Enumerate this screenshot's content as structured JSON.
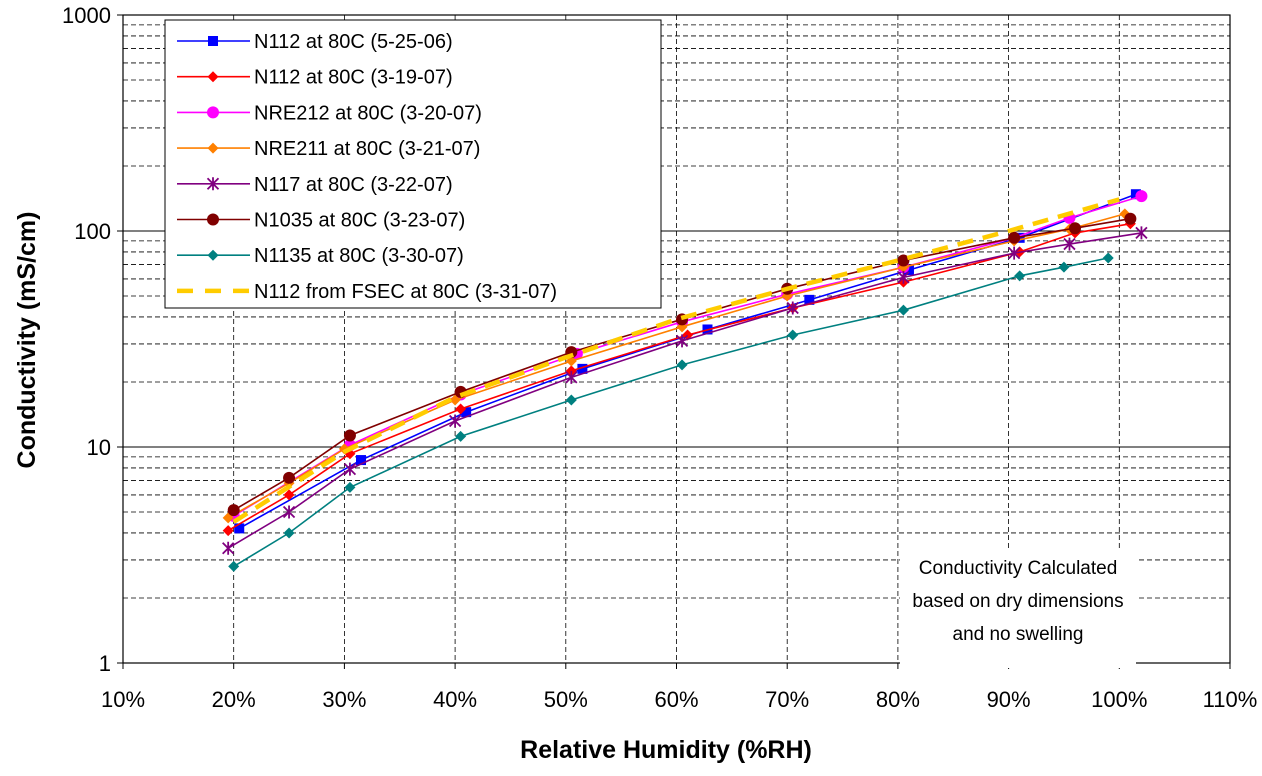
{
  "chart_data": {
    "type": "line",
    "xlabel": "Relative Humidity (%RH)",
    "ylabel": "Conductivity (mS/cm)",
    "x_scale": "linear",
    "y_scale": "log",
    "xlim": [
      10,
      110
    ],
    "ylim": [
      1,
      1000
    ],
    "x_ticks": [
      "10%",
      "20%",
      "30%",
      "40%",
      "50%",
      "60%",
      "70%",
      "80%",
      "90%",
      "100%",
      "110%"
    ],
    "y_ticks": [
      "1",
      "10",
      "100",
      "1000"
    ],
    "grid": "on (dashed)",
    "legend_position": "top-left",
    "annotation": [
      "Conductivity Calculated",
      "based on dry dimensions",
      "and no swelling"
    ],
    "series": [
      {
        "name": "N112 at 80C (5-25-06)",
        "color": "#0000FF",
        "marker": "square",
        "dash": false,
        "x": [
          20.5,
          31.5,
          41,
          51.5,
          62.8,
          72,
          81,
          91,
          101.5
        ],
        "y": [
          4.2,
          8.7,
          14.5,
          23,
          35,
          48,
          66,
          93,
          148
        ]
      },
      {
        "name": "N112 at 80C (3-19-07)",
        "color": "#FF0000",
        "marker": "diamond",
        "dash": false,
        "x": [
          19.5,
          25,
          30.5,
          40.5,
          50.5,
          61,
          70.5,
          80.5,
          91,
          96,
          101
        ],
        "y": [
          4.1,
          6.0,
          9.3,
          15,
          22.5,
          33,
          44,
          58,
          80,
          98,
          108
        ]
      },
      {
        "name": "NRE212 at 80C (3-20-07)",
        "color": "#FF00FF",
        "marker": "circle",
        "dash": false,
        "x": [
          20,
          30.5,
          40.5,
          51,
          60.5,
          70,
          80.5,
          90.5,
          95.5,
          102
        ],
        "y": [
          4.8,
          10.2,
          17.5,
          27,
          38,
          51,
          68,
          93,
          115,
          145
        ]
      },
      {
        "name": "NRE211 at 80C (3-21-07)",
        "color": "#FF8000",
        "marker": "diamond",
        "dash": false,
        "x": [
          19.5,
          25,
          30,
          40,
          50.5,
          60.5,
          70,
          80.5,
          90.5,
          95.5,
          100.5
        ],
        "y": [
          4.7,
          6.8,
          9.8,
          16.5,
          25,
          36,
          50,
          68,
          90,
          102,
          120
        ]
      },
      {
        "name": "N117 at 80C (3-22-07)",
        "color": "#800080",
        "marker": "star",
        "dash": false,
        "x": [
          19.5,
          25,
          30.5,
          40,
          50.5,
          60.5,
          70.5,
          80.5,
          90.5,
          95.5,
          102
        ],
        "y": [
          3.4,
          5.0,
          7.9,
          13.2,
          21,
          31,
          44,
          61,
          79,
          87,
          98
        ]
      },
      {
        "name": "N1035 at 80C (3-23-07)",
        "color": "#800000",
        "marker": "circle",
        "dash": false,
        "x": [
          20,
          25,
          30.5,
          40.5,
          50.5,
          60.5,
          70,
          80.5,
          90.5,
          96,
          101
        ],
        "y": [
          5.1,
          7.2,
          11.3,
          18,
          27.5,
          39,
          54,
          73,
          93,
          103,
          114
        ]
      },
      {
        "name": "N1135 at 80C (3-30-07)",
        "color": "#008080",
        "marker": "diamond",
        "dash": false,
        "x": [
          20,
          25,
          30.5,
          40.5,
          50.5,
          60.5,
          70.5,
          80.5,
          91,
          95,
          99
        ],
        "y": [
          2.8,
          4.0,
          6.5,
          11.2,
          16.5,
          24,
          33,
          43,
          62,
          68,
          75
        ]
      },
      {
        "name": "N112 from FSEC at 80C (3-31-07)",
        "color": "#FFCC00",
        "marker": "none",
        "dash": true,
        "x": [
          20,
          30,
          40,
          50,
          60,
          70,
          80,
          90,
          100
        ],
        "y": [
          4.5,
          9.5,
          17,
          26,
          39,
          54,
          73,
          100,
          140
        ]
      }
    ]
  }
}
